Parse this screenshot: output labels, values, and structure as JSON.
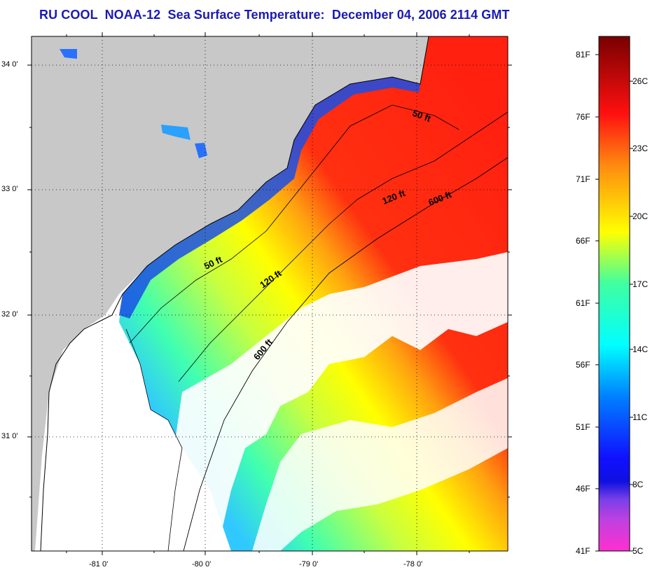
{
  "title": "RU COOL  NOAA-12  Sea Surface Temperature:  December 04, 2006 2114 GMT",
  "axes": {
    "lat_labels": [
      "34 0'",
      "33 0'",
      "32 0'",
      "31 0'"
    ],
    "lon_labels": [
      "-81 0'",
      "-80 0'",
      "-79 0'",
      "-78 0'"
    ]
  },
  "isobaths": {
    "fifty": "50 ft",
    "fifty_north": "50 ft",
    "onetwenty": "120 ft",
    "onetwenty_north": "120 ft",
    "sixhundred": "600 ft",
    "sixhundred_north": "600 ft"
  },
  "colorbar": {
    "fahrenheit": [
      "81F",
      "76F",
      "71F",
      "66F",
      "61F",
      "56F",
      "51F",
      "46F",
      "41F"
    ],
    "celsius": [
      "26C",
      "23C",
      "20C",
      "17C",
      "14C",
      "11C",
      "8C",
      "5C"
    ],
    "colors": {
      "c5": "#ff2fd0",
      "c7": "#9a3af0",
      "c8": "#1010e0",
      "c11": "#0070ff",
      "c14": "#00eeff",
      "c17": "#40ffa0",
      "c20": "#ffff00",
      "c23": "#ff7a10",
      "c26": "#ff1010",
      "c28": "#780000"
    }
  },
  "map_colors": {
    "land": "#c8c8c8",
    "cloud": "#ffffff",
    "grid": "#000000"
  }
}
